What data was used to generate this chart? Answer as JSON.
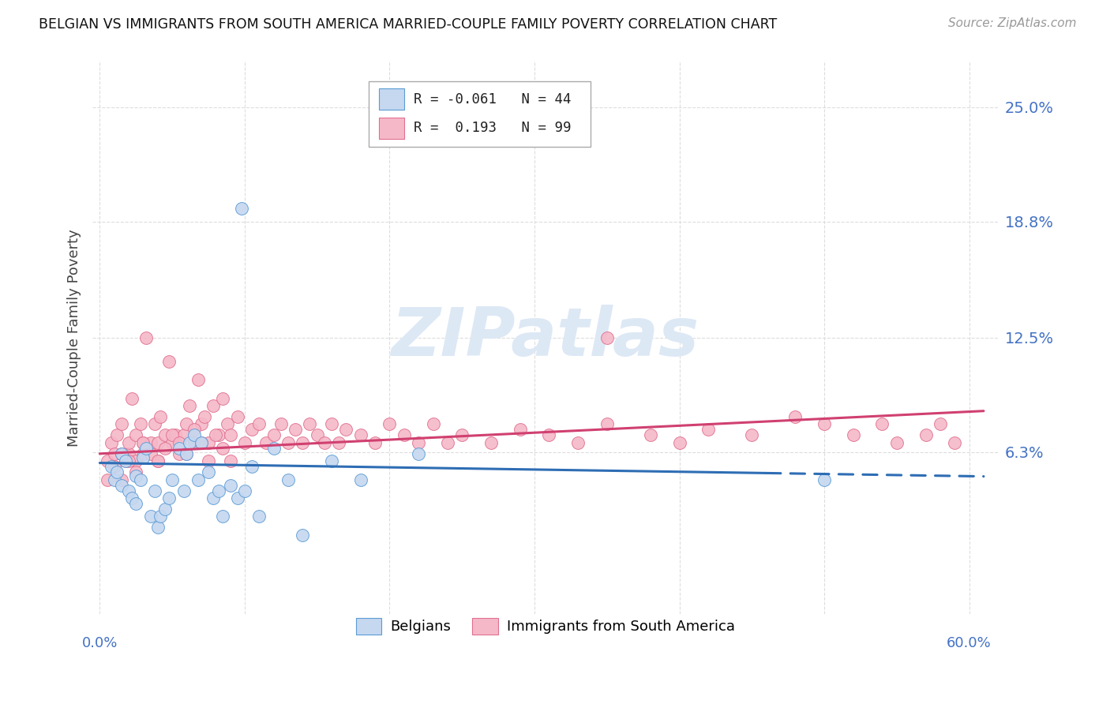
{
  "title": "BELGIAN VS IMMIGRANTS FROM SOUTH AMERICA MARRIED-COUPLE FAMILY POVERTY CORRELATION CHART",
  "source": "Source: ZipAtlas.com",
  "ylabel": "Married-Couple Family Poverty",
  "ytick_labels": [
    "6.3%",
    "12.5%",
    "18.8%",
    "25.0%"
  ],
  "ytick_values": [
    0.063,
    0.125,
    0.188,
    0.25
  ],
  "xlim": [
    -0.005,
    0.62
  ],
  "ylim": [
    -0.025,
    0.275
  ],
  "color_belgian_fill": "#c5d8f0",
  "color_belgian_edge": "#5b9bd5",
  "color_immigrant_fill": "#f5b8c8",
  "color_immigrant_edge": "#e07090",
  "color_belgian_line": "#2e6db4",
  "color_immigrant_line": "#d04070",
  "watermark_color": "#e8eef8",
  "watermark_text": "ZIPatlas",
  "grid_color": "#dddddd",
  "belgians_x": [
    0.008,
    0.01,
    0.012,
    0.015,
    0.015,
    0.018,
    0.02,
    0.022,
    0.025,
    0.025,
    0.028,
    0.03,
    0.032,
    0.035,
    0.038,
    0.04,
    0.042,
    0.045,
    0.048,
    0.05,
    0.055,
    0.058,
    0.06,
    0.062,
    0.065,
    0.068,
    0.07,
    0.075,
    0.078,
    0.082,
    0.085,
    0.09,
    0.095,
    0.1,
    0.105,
    0.11,
    0.12,
    0.13,
    0.14,
    0.16,
    0.18,
    0.22,
    0.5,
    0.098
  ],
  "belgians_y": [
    0.055,
    0.048,
    0.052,
    0.045,
    0.062,
    0.058,
    0.042,
    0.038,
    0.035,
    0.05,
    0.048,
    0.06,
    0.065,
    0.028,
    0.042,
    0.022,
    0.028,
    0.032,
    0.038,
    0.048,
    0.065,
    0.042,
    0.062,
    0.068,
    0.072,
    0.048,
    0.068,
    0.052,
    0.038,
    0.042,
    0.028,
    0.045,
    0.038,
    0.042,
    0.055,
    0.028,
    0.065,
    0.048,
    0.018,
    0.058,
    0.048,
    0.062,
    0.048,
    0.195
  ],
  "immigrants_x": [
    0.005,
    0.008,
    0.01,
    0.012,
    0.015,
    0.015,
    0.018,
    0.02,
    0.02,
    0.022,
    0.025,
    0.025,
    0.028,
    0.03,
    0.03,
    0.032,
    0.035,
    0.038,
    0.04,
    0.04,
    0.042,
    0.045,
    0.048,
    0.05,
    0.052,
    0.055,
    0.058,
    0.06,
    0.062,
    0.065,
    0.068,
    0.07,
    0.072,
    0.075,
    0.078,
    0.082,
    0.085,
    0.088,
    0.09,
    0.095,
    0.1,
    0.105,
    0.11,
    0.115,
    0.12,
    0.125,
    0.13,
    0.135,
    0.14,
    0.145,
    0.15,
    0.155,
    0.16,
    0.165,
    0.17,
    0.18,
    0.19,
    0.2,
    0.21,
    0.22,
    0.23,
    0.24,
    0.25,
    0.27,
    0.29,
    0.31,
    0.33,
    0.35,
    0.38,
    0.4,
    0.42,
    0.45,
    0.48,
    0.5,
    0.52,
    0.54,
    0.55,
    0.57,
    0.58,
    0.59,
    0.005,
    0.01,
    0.015,
    0.02,
    0.025,
    0.03,
    0.035,
    0.04,
    0.045,
    0.05,
    0.055,
    0.06,
    0.065,
    0.07,
    0.075,
    0.08,
    0.085,
    0.09,
    0.35
  ],
  "immigrants_y": [
    0.058,
    0.068,
    0.062,
    0.072,
    0.048,
    0.078,
    0.058,
    0.062,
    0.068,
    0.092,
    0.058,
    0.072,
    0.078,
    0.062,
    0.068,
    0.125,
    0.068,
    0.078,
    0.058,
    0.068,
    0.082,
    0.072,
    0.112,
    0.068,
    0.072,
    0.062,
    0.072,
    0.078,
    0.088,
    0.068,
    0.102,
    0.078,
    0.082,
    0.068,
    0.088,
    0.072,
    0.092,
    0.078,
    0.072,
    0.082,
    0.068,
    0.075,
    0.078,
    0.068,
    0.072,
    0.078,
    0.068,
    0.075,
    0.068,
    0.078,
    0.072,
    0.068,
    0.078,
    0.068,
    0.075,
    0.072,
    0.068,
    0.078,
    0.072,
    0.068,
    0.078,
    0.068,
    0.072,
    0.068,
    0.075,
    0.072,
    0.068,
    0.078,
    0.072,
    0.068,
    0.075,
    0.072,
    0.082,
    0.078,
    0.072,
    0.078,
    0.068,
    0.072,
    0.078,
    0.068,
    0.048,
    0.055,
    0.062,
    0.058,
    0.052,
    0.068,
    0.062,
    0.058,
    0.065,
    0.072,
    0.068,
    0.062,
    0.075,
    0.068,
    0.058,
    0.072,
    0.065,
    0.058,
    0.125
  ]
}
